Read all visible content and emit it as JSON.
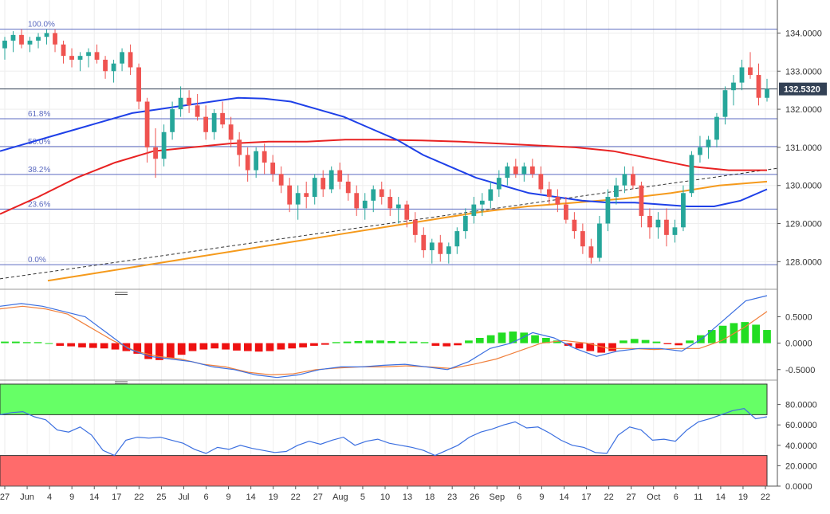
{
  "colors": {
    "up": "#26a69a",
    "down": "#ef5350",
    "fib": "#5c6bc0",
    "ma_fast": "#1e40e8",
    "ma_mid": "#e82222",
    "ma_slow": "#f59a1c",
    "trend": "#333333",
    "macd_pos": "#22dd22",
    "macd_neg": "#ee1111",
    "macd_line": "#3b6fe0",
    "signal_line": "#f0803c",
    "rsi_line": "#3b6fe0",
    "overbought_band": "#66ff66",
    "oversold_band": "#ff6b6b",
    "current_price_badge": "#334155"
  },
  "price_panel": {
    "last_price_label": "132.5320",
    "y_ticks": [
      "134.0000",
      "133.0000",
      "132.0000",
      "131.0000",
      "130.0000",
      "129.0000",
      "128.0000"
    ]
  },
  "macd_panel": {
    "y_ticks": [
      "0.5000",
      "0.0000",
      "-0.5000"
    ]
  },
  "rsi_panel": {
    "y_ticks": [
      "80.0000",
      "60.0000",
      "40.0000",
      "20.0000",
      "0.0000"
    ]
  },
  "x_axis_labels": [
    "27",
    "Jun",
    "4",
    "9",
    "14",
    "17",
    "22",
    "25",
    "Jul",
    "6",
    "9",
    "14",
    "19",
    "22",
    "27",
    "Aug",
    "5",
    "10",
    "13",
    "18",
    "23",
    "26",
    "Sep",
    "6",
    "9",
    "14",
    "17",
    "22",
    "27",
    "Oct",
    "6",
    "11",
    "14",
    "19",
    "22"
  ],
  "chart_data": [
    {
      "type": "candlestick",
      "ylim": [
        127.4,
        134.7
      ],
      "fibonacci_levels": [
        {
          "label": "100.0%",
          "value": 134.1
        },
        {
          "label": "61.8%",
          "value": 131.75
        },
        {
          "label": "50.0%",
          "value": 131.02
        },
        {
          "label": "38.2%",
          "value": 130.29
        },
        {
          "label": "23.6%",
          "value": 129.38
        },
        {
          "label": "0.0%",
          "value": 127.92
        }
      ],
      "current_price": 132.532,
      "candles": [
        [
          133.6,
          133.9,
          133.3,
          133.8
        ],
        [
          133.8,
          134.05,
          133.5,
          133.95
        ],
        [
          133.95,
          134.1,
          133.6,
          133.7
        ],
        [
          133.7,
          133.9,
          133.5,
          133.8
        ],
        [
          133.8,
          134.0,
          133.6,
          133.9
        ],
        [
          133.9,
          134.1,
          133.7,
          134.0
        ],
        [
          134.0,
          134.1,
          133.5,
          133.7
        ],
        [
          133.7,
          133.8,
          133.2,
          133.4
        ],
        [
          133.4,
          133.6,
          133.1,
          133.3
        ],
        [
          133.3,
          133.5,
          133.0,
          133.4
        ],
        [
          133.4,
          133.6,
          133.1,
          133.5
        ],
        [
          133.5,
          133.7,
          133.2,
          133.3
        ],
        [
          133.3,
          133.4,
          132.8,
          133.0
        ],
        [
          133.0,
          133.3,
          132.7,
          133.2
        ],
        [
          133.2,
          133.6,
          133.0,
          133.5
        ],
        [
          133.5,
          133.7,
          132.9,
          133.1
        ],
        [
          133.1,
          133.2,
          132.0,
          132.2
        ],
        [
          132.2,
          132.3,
          130.6,
          131.0
        ],
        [
          131.0,
          131.5,
          130.2,
          130.7
        ],
        [
          130.7,
          131.6,
          130.5,
          131.4
        ],
        [
          131.4,
          132.2,
          131.2,
          132.0
        ],
        [
          132.0,
          132.6,
          131.8,
          132.3
        ],
        [
          132.3,
          132.5,
          131.9,
          132.1
        ],
        [
          132.1,
          132.4,
          131.7,
          131.8
        ],
        [
          131.8,
          132.1,
          131.2,
          131.4
        ],
        [
          131.4,
          132.0,
          131.2,
          131.9
        ],
        [
          131.9,
          132.2,
          131.5,
          131.6
        ],
        [
          131.6,
          131.8,
          131.0,
          131.2
        ],
        [
          131.2,
          131.4,
          130.5,
          130.8
        ],
        [
          130.8,
          131.0,
          130.1,
          130.4
        ],
        [
          130.4,
          131.0,
          130.2,
          130.9
        ],
        [
          130.9,
          131.1,
          130.3,
          130.6
        ],
        [
          130.6,
          130.8,
          130.1,
          130.3
        ],
        [
          130.3,
          130.5,
          129.8,
          130.0
        ],
        [
          130.0,
          130.2,
          129.3,
          129.5
        ],
        [
          129.5,
          130.0,
          129.1,
          129.8
        ],
        [
          129.8,
          130.1,
          129.4,
          129.7
        ],
        [
          129.7,
          130.3,
          129.5,
          130.2
        ],
        [
          130.2,
          130.4,
          129.7,
          129.9
        ],
        [
          129.9,
          130.5,
          129.8,
          130.4
        ],
        [
          130.4,
          130.6,
          129.9,
          130.1
        ],
        [
          130.1,
          130.3,
          129.6,
          129.8
        ],
        [
          129.8,
          130.0,
          129.2,
          129.4
        ],
        [
          129.4,
          129.8,
          129.1,
          129.6
        ],
        [
          129.6,
          130.0,
          129.3,
          129.9
        ],
        [
          129.9,
          130.1,
          129.5,
          129.7
        ],
        [
          129.7,
          129.9,
          129.2,
          129.4
        ],
        [
          129.4,
          129.7,
          129.0,
          129.5
        ],
        [
          129.5,
          129.6,
          128.9,
          129.1
        ],
        [
          129.1,
          129.3,
          128.5,
          128.7
        ],
        [
          128.7,
          128.9,
          128.1,
          128.3
        ],
        [
          128.3,
          128.6,
          127.95,
          128.5
        ],
        [
          128.5,
          128.7,
          128.0,
          128.2
        ],
        [
          128.2,
          128.5,
          127.95,
          128.4
        ],
        [
          128.4,
          128.9,
          128.2,
          128.8
        ],
        [
          128.8,
          129.4,
          128.6,
          129.2
        ],
        [
          129.2,
          129.7,
          129.0,
          129.5
        ],
        [
          129.5,
          129.8,
          129.2,
          129.6
        ],
        [
          129.6,
          130.1,
          129.4,
          129.9
        ],
        [
          129.9,
          130.4,
          129.7,
          130.2
        ],
        [
          130.2,
          130.6,
          130.0,
          130.5
        ],
        [
          130.5,
          130.7,
          130.2,
          130.3
        ],
        [
          130.3,
          130.6,
          130.1,
          130.5
        ],
        [
          130.5,
          130.7,
          130.2,
          130.3
        ],
        [
          130.3,
          130.5,
          129.8,
          129.9
        ],
        [
          129.9,
          130.1,
          129.5,
          129.7
        ],
        [
          129.7,
          129.9,
          129.3,
          129.5
        ],
        [
          129.5,
          129.7,
          129.0,
          129.1
        ],
        [
          129.1,
          129.3,
          128.6,
          128.8
        ],
        [
          128.8,
          129.0,
          128.2,
          128.4
        ],
        [
          128.4,
          128.6,
          127.95,
          128.1
        ],
        [
          128.1,
          129.2,
          128.0,
          129.0
        ],
        [
          129.0,
          129.9,
          128.8,
          129.7
        ],
        [
          129.7,
          130.2,
          129.5,
          130.0
        ],
        [
          130.0,
          130.5,
          129.8,
          130.3
        ],
        [
          130.3,
          130.5,
          129.9,
          130.0
        ],
        [
          130.0,
          130.1,
          128.9,
          129.2
        ],
        [
          129.2,
          129.4,
          128.6,
          128.9
        ],
        [
          128.9,
          129.3,
          128.6,
          129.1
        ],
        [
          129.1,
          129.4,
          128.4,
          128.7
        ],
        [
          128.7,
          129.1,
          128.5,
          128.9
        ],
        [
          128.9,
          130.0,
          128.8,
          129.8
        ],
        [
          129.8,
          130.9,
          129.7,
          130.8
        ],
        [
          130.8,
          131.3,
          130.6,
          131.0
        ],
        [
          131.0,
          131.3,
          130.7,
          131.2
        ],
        [
          131.2,
          131.9,
          131.0,
          131.8
        ],
        [
          131.8,
          132.6,
          131.6,
          132.5
        ],
        [
          132.5,
          132.9,
          132.1,
          132.7
        ],
        [
          132.7,
          133.3,
          132.5,
          133.1
        ],
        [
          133.1,
          133.5,
          132.8,
          132.9
        ],
        [
          132.9,
          133.2,
          132.1,
          132.3
        ],
        [
          132.3,
          132.8,
          132.2,
          132.532
        ]
      ],
      "ma_fast_values": [
        130.9,
        131.1,
        131.3,
        131.5,
        131.7,
        131.9,
        132.0,
        132.1,
        132.2,
        132.3,
        132.28,
        132.2,
        132.0,
        131.8,
        131.5,
        131.2,
        130.8,
        130.5,
        130.2,
        130.0,
        129.8,
        129.7,
        129.6,
        129.55,
        129.55,
        129.5,
        129.45,
        129.45,
        129.6,
        129.9
      ],
      "ma_mid_values": [
        129.25,
        129.7,
        130.2,
        130.6,
        130.9,
        131.0,
        131.1,
        131.15,
        131.15,
        131.2,
        131.2,
        131.18,
        131.15,
        131.1,
        131.05,
        131.0,
        130.9,
        130.7,
        130.5,
        130.4,
        130.4
      ],
      "ma_slow_values": [
        127.5,
        127.7,
        127.9,
        128.1,
        128.3,
        128.5,
        128.7,
        128.9,
        129.1,
        129.3,
        129.45,
        129.55,
        129.65,
        129.8,
        130.0,
        130.1
      ],
      "trendline": [
        127.55,
        130.45
      ]
    },
    {
      "type": "bar",
      "ylim": [
        -0.7,
        0.9
      ],
      "histogram": [
        0.03,
        0.03,
        0.02,
        0.02,
        0.0,
        -0.05,
        -0.06,
        -0.08,
        -0.09,
        -0.1,
        -0.12,
        -0.15,
        -0.2,
        -0.3,
        -0.32,
        -0.28,
        -0.22,
        -0.15,
        -0.12,
        -0.1,
        -0.12,
        -0.14,
        -0.15,
        -0.16,
        -0.15,
        -0.12,
        -0.1,
        -0.08,
        -0.05,
        -0.03,
        0.02,
        0.03,
        0.04,
        0.05,
        0.05,
        0.04,
        0.03,
        0.03,
        0.02,
        -0.05,
        -0.06,
        -0.04,
        0.05,
        0.1,
        0.15,
        0.2,
        0.22,
        0.2,
        0.15,
        0.1,
        0.05,
        -0.05,
        -0.1,
        -0.15,
        -0.18,
        -0.15,
        0.05,
        0.08,
        0.06,
        0.03,
        -0.02,
        -0.04,
        0.05,
        0.15,
        0.25,
        0.33,
        0.38,
        0.4,
        0.35,
        0.25
      ],
      "macd_line": [
        0.7,
        0.75,
        0.7,
        0.6,
        0.5,
        0.2,
        -0.1,
        -0.25,
        -0.3,
        -0.35,
        -0.45,
        -0.5,
        -0.6,
        -0.65,
        -0.6,
        -0.5,
        -0.45,
        -0.45,
        -0.42,
        -0.4,
        -0.45,
        -0.5,
        -0.35,
        -0.1,
        0.0,
        0.2,
        0.1,
        -0.1,
        -0.25,
        -0.15,
        -0.1,
        -0.1,
        -0.15,
        0.1,
        0.45,
        0.8,
        0.9
      ],
      "signal_line": [
        0.65,
        0.7,
        0.65,
        0.55,
        0.3,
        0.05,
        -0.15,
        -0.25,
        -0.3,
        -0.4,
        -0.45,
        -0.55,
        -0.6,
        -0.58,
        -0.5,
        -0.47,
        -0.45,
        -0.45,
        -0.43,
        -0.45,
        -0.48,
        -0.4,
        -0.3,
        -0.15,
        0.0,
        0.05,
        0.0,
        -0.1,
        -0.1,
        -0.12,
        -0.1,
        -0.1,
        0.05,
        0.3,
        0.6
      ]
    },
    {
      "type": "line",
      "ylim": [
        0,
        100
      ],
      "overbought": 70,
      "oversold": 30,
      "rsi_values": [
        70,
        72,
        73,
        68,
        65,
        55,
        53,
        58,
        50,
        35,
        30,
        45,
        48,
        47,
        48,
        45,
        42,
        36,
        32,
        38,
        36,
        40,
        37,
        35,
        33,
        34,
        40,
        44,
        41,
        45,
        48,
        40,
        44,
        46,
        42,
        40,
        38,
        35,
        30,
        35,
        40,
        48,
        53,
        56,
        60,
        63,
        57,
        58,
        52,
        45,
        40,
        38,
        33,
        32,
        50,
        58,
        55,
        45,
        46,
        44,
        55,
        63,
        66,
        70,
        74,
        76,
        66,
        68
      ]
    }
  ]
}
